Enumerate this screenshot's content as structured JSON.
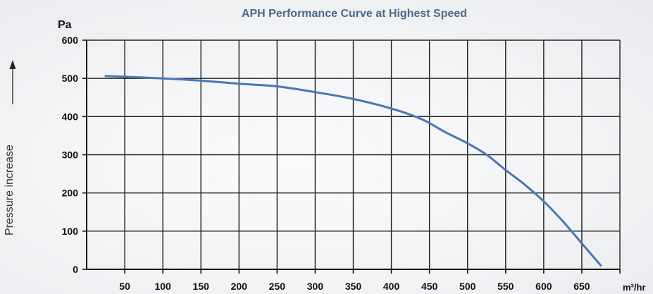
{
  "chart_data": {
    "type": "line",
    "title": "APH Performance Curve at Highest Speed",
    "ylabel_unit": "Pa",
    "xlabel_unit": "m³/hr",
    "side_label": "Pressure increase",
    "xlim": [
      0,
      700
    ],
    "ylim": [
      0,
      600
    ],
    "x_ticks": [
      50,
      100,
      150,
      200,
      250,
      300,
      350,
      400,
      450,
      500,
      550,
      600,
      650
    ],
    "y_ticks": [
      0,
      100,
      200,
      300,
      400,
      500,
      600
    ],
    "grid": true,
    "line_color": "#4a76b4",
    "series": [
      {
        "x": [
          25,
          100,
          150,
          200,
          250,
          300,
          350,
          400,
          440,
          470,
          500,
          525,
          550,
          575,
          600,
          625,
          650,
          675
        ],
        "y": [
          506,
          500,
          494,
          486,
          479,
          464,
          446,
          421,
          393,
          360,
          330,
          300,
          260,
          222,
          178,
          126,
          68,
          10
        ]
      }
    ]
  }
}
